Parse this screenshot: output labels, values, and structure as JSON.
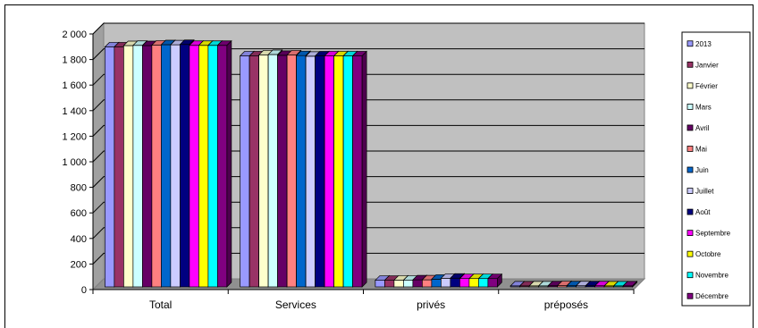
{
  "chart_data": {
    "type": "bar",
    "categories": [
      "Total",
      "Services",
      "privés",
      "préposés"
    ],
    "series": [
      {
        "name": "2013",
        "color": "#9999FF",
        "values": [
          1878,
          1808,
          52,
          8
        ]
      },
      {
        "name": "Janvier",
        "color": "#993366",
        "values": [
          1878,
          1808,
          52,
          8
        ]
      },
      {
        "name": "Février",
        "color": "#FFFFCC",
        "values": [
          1888,
          1815,
          53,
          8
        ]
      },
      {
        "name": "Mars",
        "color": "#CCFFFF",
        "values": [
          1890,
          1818,
          52,
          8
        ]
      },
      {
        "name": "Avril",
        "color": "#660066",
        "values": [
          1888,
          1812,
          55,
          9
        ]
      },
      {
        "name": "Mai",
        "color": "#FF8080",
        "values": [
          1892,
          1815,
          55,
          10
        ]
      },
      {
        "name": "Juin",
        "color": "#0066CC",
        "values": [
          1895,
          1810,
          60,
          9
        ]
      },
      {
        "name": "Juillet",
        "color": "#CCCCFF",
        "values": [
          1894,
          1805,
          67,
          9
        ]
      },
      {
        "name": "Août",
        "color": "#000080",
        "values": [
          1897,
          1808,
          68,
          9
        ]
      },
      {
        "name": "Septembre",
        "color": "#FF00FF",
        "values": [
          1890,
          1808,
          65,
          9
        ]
      },
      {
        "name": "Octobre",
        "color": "#FFFF00",
        "values": [
          1890,
          1808,
          65,
          8
        ]
      },
      {
        "name": "Novembre",
        "color": "#00FFFF",
        "values": [
          1890,
          1808,
          65,
          8
        ]
      },
      {
        "name": "Décembre",
        "color": "#800080",
        "values": [
          1890,
          1808,
          65,
          8
        ]
      }
    ],
    "yticks": [
      "0",
      "200",
      "400",
      "600",
      "800",
      "1 000",
      "1 200",
      "1 400",
      "1 600",
      "1 800",
      "2 000"
    ],
    "ylim": [
      0,
      2000
    ],
    "grid": true,
    "legend_position": "right",
    "plot_background": "#C0C0C0"
  }
}
